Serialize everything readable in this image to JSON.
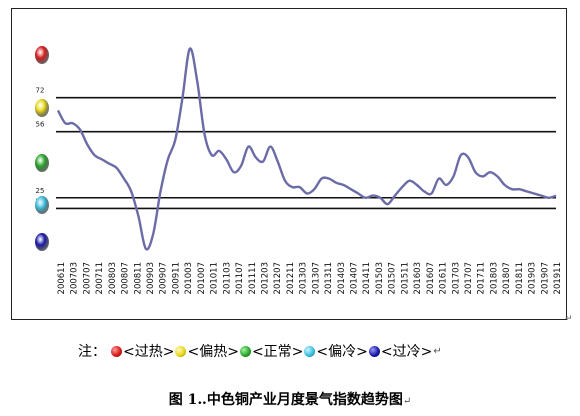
{
  "chart_data": {
    "type": "line",
    "title": "",
    "xlabel": "",
    "ylabel": "",
    "ylim": [
      0,
      100
    ],
    "x_tick_labels": [
      "200611",
      "200703",
      "200707",
      "200711",
      "200803",
      "200807",
      "200811",
      "200903",
      "200907",
      "200911",
      "201003",
      "201007",
      "201011",
      "201103",
      "201107",
      "201111",
      "201203",
      "201207",
      "201211",
      "201303",
      "201307",
      "201311",
      "201403",
      "201407",
      "201411",
      "201503",
      "201507",
      "201511",
      "201603",
      "201607",
      "201611",
      "201703",
      "201707",
      "201711",
      "201803",
      "201807",
      "201811",
      "201903",
      "201907",
      "201911"
    ],
    "threshold_lines": [
      {
        "value": 72,
        "label": "72"
      },
      {
        "value": 56,
        "label": "56"
      },
      {
        "value": 25,
        "label": "25"
      },
      {
        "value": 20,
        "label": "20"
      }
    ],
    "series": [
      {
        "values": [
          66,
          60,
          60,
          57,
          50,
          45,
          43,
          41,
          39,
          34,
          28,
          16,
          1,
          8,
          28,
          43,
          52,
          72,
          95,
          80,
          55,
          45,
          47,
          43,
          37,
          40,
          49,
          44,
          42,
          49,
          42,
          33,
          30,
          30,
          27,
          29,
          34,
          34,
          32,
          31,
          29,
          27,
          25,
          26,
          25,
          22,
          26,
          30,
          33,
          31,
          28,
          27,
          34,
          31,
          35,
          45,
          44,
          37,
          35,
          37,
          35,
          31,
          29,
          29,
          28,
          27,
          26,
          25,
          26
        ],
        "color": "#6b6ba8"
      }
    ],
    "zones": [
      {
        "color": "#d81c1c"
      },
      {
        "color": "#e8d81a"
      },
      {
        "color": "#2aa82a"
      },
      {
        "color": "#3cc0e0"
      },
      {
        "color": "#1a1aa8"
      }
    ]
  },
  "legend": {
    "prefix": "注：",
    "items": [
      {
        "label": "<过热>",
        "color": "#d81c1c"
      },
      {
        "label": "<偏热>",
        "color": "#e8d81a"
      },
      {
        "label": "<正常>",
        "color": "#2aa82a"
      },
      {
        "label": "<偏冷>",
        "color": "#3cc0e0"
      },
      {
        "label": "<过冷>",
        "color": "#1a1aa8"
      }
    ],
    "end_mark": "↵"
  },
  "caption": {
    "text": "图 1‥中色铜产业月度景气指数趋势图",
    "end_mark": "↵"
  }
}
